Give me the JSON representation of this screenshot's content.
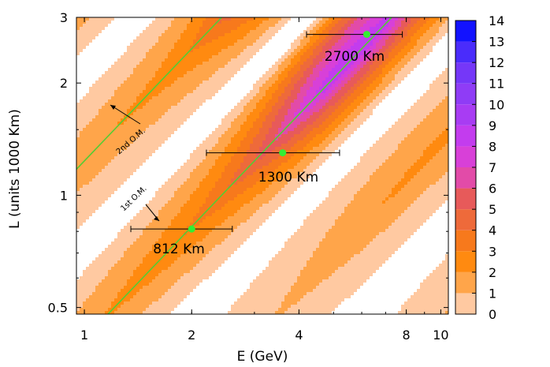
{
  "chart_data": {
    "type": "heatmap",
    "title": "",
    "xlabel": "E (GeV)",
    "ylabel": "L (units 1000 Km)",
    "xscale": "log",
    "yscale": "log",
    "xlim": [
      0.95,
      10.5
    ],
    "ylim": [
      0.48,
      3.0
    ],
    "x_ticks": [
      1,
      2,
      4,
      8,
      10
    ],
    "x_tick_labels": [
      "1",
      "2",
      "4",
      "8",
      "10"
    ],
    "y_ticks": [
      0.5,
      1,
      2,
      3
    ],
    "y_tick_labels": [
      "0.5",
      "1",
      "2",
      "3"
    ],
    "colorbar": {
      "min": 0,
      "max": 14,
      "ticks": [
        0,
        1,
        2,
        3,
        4,
        5,
        6,
        7,
        8,
        9,
        10,
        11,
        12,
        13,
        14
      ],
      "tick_labels": [
        "0",
        "1",
        "2",
        "3",
        "4",
        "5",
        "6",
        "7",
        "8",
        "9",
        "10",
        "11",
        "12",
        "13",
        "14"
      ],
      "colors": [
        "#ffffff",
        "#ffc9a1",
        "#ffa54a",
        "#ff8a10",
        "#f7791c",
        "#ee6a3a",
        "#e75a5a",
        "#e24ba8",
        "#d840d8",
        "#c33cee",
        "#a83cf3",
        "#8f3cf6",
        "#7537f8",
        "#4a2cfb",
        "#1212ff"
      ]
    },
    "band_model": {
      "first_oscillation_max_L_over_E": 412,
      "oscillation_period_in_log_L_over_E": 1.0986,
      "peak_L_km": 2700,
      "peak_E_GeV": 4.2
    },
    "series": [
      {
        "name": "812 Km",
        "L_km": 812,
        "E": 2.0,
        "E_err": [
          1.35,
          2.6
        ]
      },
      {
        "name": "1300 Km",
        "L_km": 1300,
        "E": 3.6,
        "E_err": [
          2.2,
          5.2
        ]
      },
      {
        "name": "2700 Km",
        "L_km": 2700,
        "E": 6.2,
        "E_err": [
          4.2,
          7.8
        ]
      }
    ],
    "lines": [
      {
        "name": "1st O.M.",
        "L_over_E": 412
      },
      {
        "name": "2nd O.M.",
        "L_over_E": 1236
      }
    ],
    "annotations": {
      "first_om": "1st O.M.",
      "second_om": "2nd O.M."
    },
    "marker_color": "#33ee33",
    "line_color": "#55cc33"
  }
}
